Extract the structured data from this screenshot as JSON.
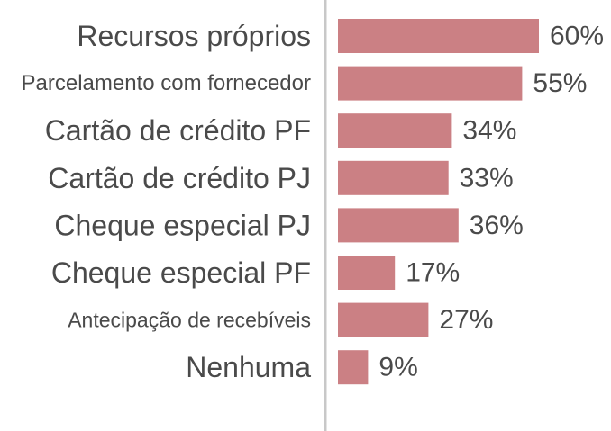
{
  "chart_data": {
    "type": "bar",
    "orientation": "horizontal",
    "categories": [
      "Recursos próprios",
      "Parcelamento com fornecedor",
      "Cartão de crédito PF",
      "Cartão de crédito PJ",
      "Cheque especial PJ",
      "Cheque especial PF",
      "Antecipação de recebíveis",
      "Nenhuma"
    ],
    "values": [
      60,
      55,
      34,
      33,
      36,
      17,
      27,
      9
    ],
    "value_labels": [
      "60%",
      "55%",
      "34%",
      "33%",
      "36%",
      "17%",
      "27%",
      "9%"
    ],
    "unit": "%",
    "xlim": [
      0,
      60
    ],
    "grid": false,
    "legend": "none",
    "bar_color": "#cb8084",
    "axis_color": "#c8c8c8"
  }
}
